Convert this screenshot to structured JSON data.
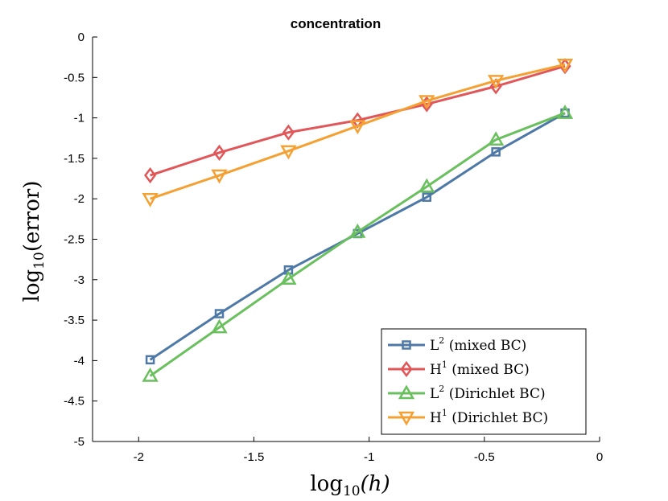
{
  "chart_data": {
    "type": "line",
    "title": "concentration",
    "xlabel": {
      "main": "log",
      "sub": "10",
      "arg": "(h)"
    },
    "ylabel": {
      "main": "log",
      "sub": "10",
      "arg": "(error)"
    },
    "xlim": [
      -2.2,
      0
    ],
    "ylim": [
      -5,
      0
    ],
    "xticks": [
      -2,
      -1.5,
      -1,
      -0.5,
      0
    ],
    "xtick_labels": [
      "-2",
      "-1.5",
      "-1",
      "-0.5",
      "0"
    ],
    "yticks": [
      0,
      -0.5,
      -1,
      -1.5,
      -2,
      -2.5,
      -3,
      -3.5,
      -4,
      -4.5,
      -5
    ],
    "ytick_labels": [
      "0",
      "-0.5",
      "-1",
      "-1.5",
      "-2",
      "-2.5",
      "-3",
      "-3.5",
      "-4",
      "-4.5",
      "-5"
    ],
    "grid": false,
    "legend_position": "bottom-right",
    "x": [
      -1.95,
      -1.65,
      -1.35,
      -1.05,
      -0.75,
      -0.45,
      -0.15
    ],
    "series": [
      {
        "name": "L² (mixed BC)",
        "label_main": "L",
        "label_sup": "2",
        "label_rest": " (mixed BC)",
        "color": "#4e79a7",
        "marker": "square",
        "values": [
          -3.99,
          -3.42,
          -2.88,
          -2.43,
          -1.98,
          -1.42,
          -0.94
        ]
      },
      {
        "name": "H¹ (mixed BC)",
        "label_main": "H",
        "label_sup": "1",
        "label_rest": " (mixed BC)",
        "color": "#e15759",
        "marker": "diamond",
        "values": [
          -1.71,
          -1.43,
          -1.18,
          -1.03,
          -0.83,
          -0.61,
          -0.36
        ]
      },
      {
        "name": "L² (Dirichlet BC)",
        "label_main": "L",
        "label_sup": "2",
        "label_rest": " (Dirichlet BC)",
        "color": "#6abf5e",
        "marker": "triangle-up",
        "values": [
          -4.19,
          -3.59,
          -2.99,
          -2.41,
          -1.85,
          -1.27,
          -0.94
        ]
      },
      {
        "name": "H¹ (Dirichlet BC)",
        "label_main": "H",
        "label_sup": "1",
        "label_rest": " (Dirichlet BC)",
        "color": "#f5a033",
        "marker": "triangle-down",
        "values": [
          -2.0,
          -1.71,
          -1.41,
          -1.1,
          -0.79,
          -0.54,
          -0.34
        ]
      }
    ]
  }
}
